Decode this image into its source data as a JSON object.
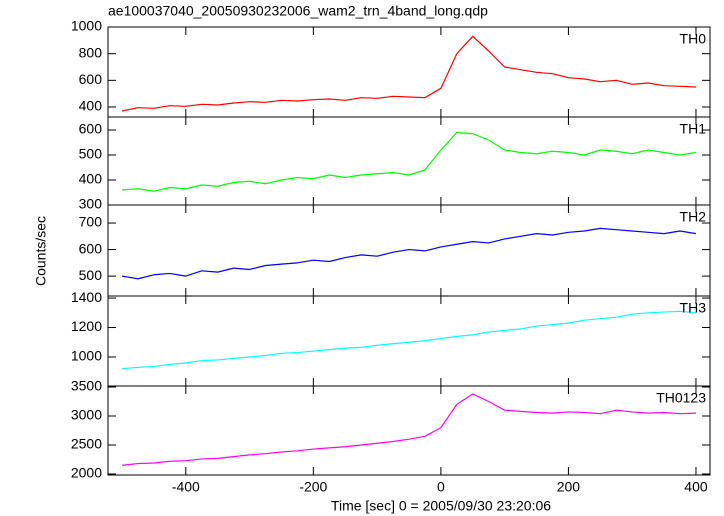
{
  "title": "ae100037040_20050930232006_wam2_trn_4band_long.qdp",
  "x_label": "Time [sec] 0 = 2005/09/30 23:20:06",
  "y_label": "Counts/sec",
  "chart_data": [
    {
      "type": "line",
      "label": "TH0",
      "xlim": [
        -522,
        422
      ],
      "xticks": [
        -400,
        -200,
        0,
        200,
        400
      ],
      "ylim": [
        325,
        1000
      ],
      "yticks": [
        400,
        600,
        800,
        1000
      ],
      "x": [
        -500,
        -475,
        -450,
        -425,
        -400,
        -375,
        -350,
        -325,
        -300,
        -275,
        -250,
        -225,
        -200,
        -175,
        -150,
        -125,
        -100,
        -75,
        -50,
        -25,
        0,
        25,
        50,
        75,
        100,
        125,
        150,
        175,
        200,
        225,
        250,
        275,
        300,
        325,
        350,
        375,
        400
      ],
      "series": [
        {
          "color": "#ff0000",
          "values": [
            370,
            395,
            390,
            410,
            405,
            420,
            415,
            430,
            440,
            435,
            450,
            445,
            455,
            460,
            450,
            470,
            465,
            480,
            475,
            470,
            540,
            800,
            930,
            820,
            700,
            680,
            660,
            650,
            620,
            610,
            590,
            600,
            570,
            580,
            560,
            555,
            550
          ]
        }
      ]
    },
    {
      "type": "line",
      "label": "TH1",
      "xlim": [
        -522,
        422
      ],
      "xticks": [
        -400,
        -200,
        0,
        200,
        400
      ],
      "ylim": [
        300,
        652
      ],
      "yticks": [
        300,
        400,
        500,
        600
      ],
      "x": [
        -500,
        -475,
        -450,
        -425,
        -400,
        -375,
        -350,
        -325,
        -300,
        -275,
        -250,
        -225,
        -200,
        -175,
        -150,
        -125,
        -100,
        -75,
        -50,
        -25,
        0,
        25,
        50,
        75,
        100,
        125,
        150,
        175,
        200,
        225,
        250,
        275,
        300,
        325,
        350,
        375,
        400
      ],
      "series": [
        {
          "color": "#00ff00",
          "values": [
            360,
            365,
            355,
            370,
            365,
            380,
            375,
            390,
            395,
            385,
            400,
            410,
            405,
            420,
            410,
            420,
            425,
            430,
            420,
            440,
            520,
            590,
            585,
            560,
            520,
            510,
            505,
            515,
            510,
            500,
            520,
            515,
            505,
            520,
            510,
            500,
            510
          ]
        }
      ]
    },
    {
      "type": "line",
      "label": "TH2",
      "xlim": [
        -522,
        422
      ],
      "xticks": [
        -400,
        -200,
        0,
        200,
        400
      ],
      "ylim": [
        425,
        768
      ],
      "yticks": [
        500,
        600,
        700
      ],
      "x": [
        -500,
        -475,
        -450,
        -425,
        -400,
        -375,
        -350,
        -325,
        -300,
        -275,
        -250,
        -225,
        -200,
        -175,
        -150,
        -125,
        -100,
        -75,
        -50,
        -25,
        0,
        25,
        50,
        75,
        100,
        125,
        150,
        175,
        200,
        225,
        250,
        275,
        300,
        325,
        350,
        375,
        400
      ],
      "series": [
        {
          "color": "#0000ff",
          "values": [
            500,
            490,
            505,
            510,
            500,
            520,
            515,
            530,
            525,
            540,
            545,
            550,
            560,
            555,
            570,
            580,
            575,
            590,
            600,
            595,
            610,
            620,
            630,
            625,
            640,
            650,
            660,
            655,
            665,
            670,
            680,
            675,
            670,
            665,
            660,
            670,
            660
          ]
        }
      ]
    },
    {
      "type": "line",
      "label": "TH3",
      "xlim": [
        -522,
        422
      ],
      "xticks": [
        -400,
        -200,
        0,
        200,
        400
      ],
      "ylim": [
        803,
        1414
      ],
      "yticks": [
        1000,
        1200,
        1400
      ],
      "x": [
        -500,
        -475,
        -450,
        -425,
        -400,
        -375,
        -350,
        -325,
        -300,
        -275,
        -250,
        -225,
        -200,
        -175,
        -150,
        -125,
        -100,
        -75,
        -50,
        -25,
        0,
        25,
        50,
        75,
        100,
        125,
        150,
        175,
        200,
        225,
        250,
        275,
        300,
        325,
        350,
        375,
        400
      ],
      "series": [
        {
          "color": "#00ffff",
          "values": [
            920,
            930,
            935,
            950,
            960,
            975,
            980,
            990,
            1000,
            1010,
            1025,
            1030,
            1040,
            1050,
            1060,
            1065,
            1080,
            1090,
            1100,
            1110,
            1125,
            1140,
            1150,
            1170,
            1180,
            1190,
            1210,
            1220,
            1230,
            1250,
            1260,
            1270,
            1290,
            1300,
            1305,
            1310,
            1300
          ]
        }
      ]
    },
    {
      "type": "line",
      "label": "TH0123",
      "xlim": [
        -522,
        422
      ],
      "xticks": [
        -400,
        -200,
        0,
        200,
        400
      ],
      "ylim": [
        1983,
        3517
      ],
      "yticks": [
        2000,
        2500,
        3000,
        3500
      ],
      "x": [
        -500,
        -475,
        -450,
        -425,
        -400,
        -375,
        -350,
        -325,
        -300,
        -275,
        -250,
        -225,
        -200,
        -175,
        -150,
        -125,
        -100,
        -75,
        -50,
        -25,
        0,
        25,
        50,
        75,
        100,
        125,
        150,
        175,
        200,
        225,
        250,
        275,
        300,
        325,
        350,
        375,
        400
      ],
      "series": [
        {
          "color": "#ff00ff",
          "values": [
            2150,
            2180,
            2190,
            2220,
            2230,
            2260,
            2270,
            2300,
            2330,
            2350,
            2380,
            2400,
            2430,
            2450,
            2470,
            2500,
            2530,
            2560,
            2600,
            2650,
            2800,
            3200,
            3380,
            3250,
            3100,
            3080,
            3060,
            3050,
            3070,
            3060,
            3040,
            3100,
            3070,
            3050,
            3060,
            3040,
            3050
          ]
        }
      ]
    }
  ]
}
